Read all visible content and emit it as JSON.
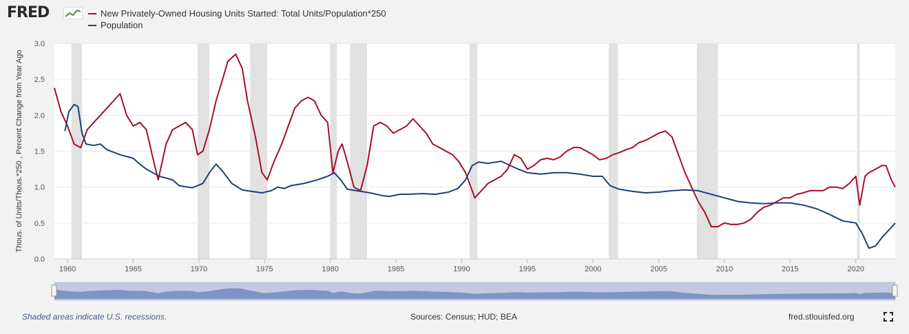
{
  "logo": {
    "text": "FRED",
    "icon": "fred-chart-icon"
  },
  "legend": [
    {
      "label": "New Privately-Owned Housing Units Started: Total Units/Population*250",
      "color": "#a50e27"
    },
    {
      "label": "Population",
      "color": "#1d3f74"
    }
  ],
  "footer": {
    "note": "Shaded areas indicate U.S. recessions.",
    "sources": "Sources: Census; HUD; BEA",
    "site": "fred.stlouisfed.org",
    "expand_icon": "fullscreen-icon"
  },
  "chart_data": {
    "type": "line",
    "ylabel": "Thous. of Units/Thous.*250 , Percent Change from Year Ago",
    "xlabel": "",
    "xlim": [
      1959.0,
      2023.0
    ],
    "ylim": [
      0.0,
      3.0
    ],
    "y_ticks": [
      "0.0",
      "0.5",
      "1.0",
      "1.5",
      "2.0",
      "2.5",
      "3.0"
    ],
    "x_ticks": [
      "1960",
      "1965",
      "1970",
      "1975",
      "1980",
      "1985",
      "1990",
      "1995",
      "2000",
      "2005",
      "2010",
      "2015",
      "2020"
    ],
    "grid": true,
    "legend_position": "top-left",
    "recessions": [
      [
        1960.3,
        1961.1
      ],
      [
        1969.9,
        1970.8
      ],
      [
        1973.9,
        1975.2
      ],
      [
        1980.0,
        1980.5
      ],
      [
        1981.5,
        1982.8
      ],
      [
        1990.6,
        1991.2
      ],
      [
        2001.2,
        2001.9
      ],
      [
        2007.9,
        2009.5
      ],
      [
        2020.1,
        2020.3
      ]
    ],
    "series": [
      {
        "name": "New Privately-Owned Housing Units Started: Total Units/Population*250",
        "color": "#a50e27",
        "points": [
          [
            1959.0,
            2.38
          ],
          [
            1959.5,
            2.05
          ],
          [
            1960.0,
            1.85
          ],
          [
            1960.5,
            1.6
          ],
          [
            1961.0,
            1.55
          ],
          [
            1961.5,
            1.8
          ],
          [
            1962.0,
            1.9
          ],
          [
            1962.5,
            2.0
          ],
          [
            1963.0,
            2.1
          ],
          [
            1963.5,
            2.2
          ],
          [
            1964.0,
            2.3
          ],
          [
            1964.5,
            2.0
          ],
          [
            1965.0,
            1.85
          ],
          [
            1965.5,
            1.9
          ],
          [
            1966.0,
            1.8
          ],
          [
            1966.5,
            1.4
          ],
          [
            1966.9,
            1.1
          ],
          [
            1967.5,
            1.6
          ],
          [
            1968.0,
            1.8
          ],
          [
            1968.5,
            1.85
          ],
          [
            1969.0,
            1.9
          ],
          [
            1969.5,
            1.8
          ],
          [
            1969.9,
            1.45
          ],
          [
            1970.3,
            1.5
          ],
          [
            1970.8,
            1.8
          ],
          [
            1971.3,
            2.2
          ],
          [
            1971.8,
            2.5
          ],
          [
            1972.2,
            2.75
          ],
          [
            1972.8,
            2.85
          ],
          [
            1973.3,
            2.65
          ],
          [
            1973.7,
            2.2
          ],
          [
            1974.3,
            1.7
          ],
          [
            1974.8,
            1.2
          ],
          [
            1975.2,
            1.1
          ],
          [
            1975.7,
            1.35
          ],
          [
            1976.3,
            1.6
          ],
          [
            1976.8,
            1.85
          ],
          [
            1977.3,
            2.1
          ],
          [
            1977.8,
            2.2
          ],
          [
            1978.3,
            2.25
          ],
          [
            1978.8,
            2.2
          ],
          [
            1979.3,
            2.0
          ],
          [
            1979.8,
            1.9
          ],
          [
            1980.2,
            1.2
          ],
          [
            1980.6,
            1.5
          ],
          [
            1980.9,
            1.6
          ],
          [
            1981.3,
            1.35
          ],
          [
            1981.8,
            1.0
          ],
          [
            1982.3,
            0.95
          ],
          [
            1982.8,
            1.3
          ],
          [
            1983.3,
            1.85
          ],
          [
            1983.8,
            1.9
          ],
          [
            1984.3,
            1.85
          ],
          [
            1984.8,
            1.75
          ],
          [
            1985.3,
            1.8
          ],
          [
            1985.8,
            1.85
          ],
          [
            1986.3,
            1.95
          ],
          [
            1986.8,
            1.85
          ],
          [
            1987.3,
            1.75
          ],
          [
            1987.8,
            1.6
          ],
          [
            1988.3,
            1.55
          ],
          [
            1988.8,
            1.5
          ],
          [
            1989.3,
            1.45
          ],
          [
            1989.8,
            1.35
          ],
          [
            1990.3,
            1.2
          ],
          [
            1990.7,
            1.0
          ],
          [
            1991.0,
            0.85
          ],
          [
            1991.5,
            0.95
          ],
          [
            1992.0,
            1.05
          ],
          [
            1992.5,
            1.1
          ],
          [
            1993.0,
            1.15
          ],
          [
            1993.5,
            1.25
          ],
          [
            1994.0,
            1.45
          ],
          [
            1994.5,
            1.4
          ],
          [
            1995.0,
            1.25
          ],
          [
            1995.5,
            1.3
          ],
          [
            1996.0,
            1.38
          ],
          [
            1996.5,
            1.4
          ],
          [
            1997.0,
            1.38
          ],
          [
            1997.5,
            1.42
          ],
          [
            1998.0,
            1.5
          ],
          [
            1998.5,
            1.55
          ],
          [
            1999.0,
            1.55
          ],
          [
            1999.5,
            1.5
          ],
          [
            2000.0,
            1.45
          ],
          [
            2000.5,
            1.38
          ],
          [
            2001.0,
            1.4
          ],
          [
            2001.5,
            1.45
          ],
          [
            2002.0,
            1.48
          ],
          [
            2002.5,
            1.52
          ],
          [
            2003.0,
            1.55
          ],
          [
            2003.5,
            1.62
          ],
          [
            2004.0,
            1.65
          ],
          [
            2004.5,
            1.7
          ],
          [
            2005.0,
            1.75
          ],
          [
            2005.5,
            1.78
          ],
          [
            2006.0,
            1.7
          ],
          [
            2006.5,
            1.45
          ],
          [
            2007.0,
            1.2
          ],
          [
            2007.5,
            1.0
          ],
          [
            2008.0,
            0.8
          ],
          [
            2008.5,
            0.65
          ],
          [
            2009.0,
            0.45
          ],
          [
            2009.5,
            0.45
          ],
          [
            2010.0,
            0.5
          ],
          [
            2010.5,
            0.48
          ],
          [
            2011.0,
            0.48
          ],
          [
            2011.5,
            0.5
          ],
          [
            2012.0,
            0.55
          ],
          [
            2012.5,
            0.65
          ],
          [
            2013.0,
            0.72
          ],
          [
            2013.5,
            0.75
          ],
          [
            2014.0,
            0.8
          ],
          [
            2014.5,
            0.85
          ],
          [
            2015.0,
            0.85
          ],
          [
            2015.5,
            0.9
          ],
          [
            2016.0,
            0.92
          ],
          [
            2016.5,
            0.95
          ],
          [
            2017.0,
            0.95
          ],
          [
            2017.5,
            0.95
          ],
          [
            2018.0,
            1.0
          ],
          [
            2018.5,
            1.0
          ],
          [
            2019.0,
            0.98
          ],
          [
            2019.5,
            1.05
          ],
          [
            2020.0,
            1.15
          ],
          [
            2020.3,
            0.75
          ],
          [
            2020.7,
            1.15
          ],
          [
            2021.0,
            1.2
          ],
          [
            2021.5,
            1.25
          ],
          [
            2022.0,
            1.3
          ],
          [
            2022.3,
            1.3
          ],
          [
            2022.7,
            1.1
          ],
          [
            2023.0,
            1.0
          ]
        ]
      },
      {
        "name": "Population",
        "color": "#1d3f74",
        "points": [
          [
            1959.8,
            1.78
          ],
          [
            1960.1,
            2.05
          ],
          [
            1960.5,
            2.15
          ],
          [
            1960.8,
            2.12
          ],
          [
            1961.1,
            1.75
          ],
          [
            1961.4,
            1.6
          ],
          [
            1962.0,
            1.58
          ],
          [
            1962.5,
            1.6
          ],
          [
            1963.0,
            1.52
          ],
          [
            1964.0,
            1.45
          ],
          [
            1965.0,
            1.4
          ],
          [
            1965.5,
            1.32
          ],
          [
            1966.0,
            1.25
          ],
          [
            1967.0,
            1.15
          ],
          [
            1968.0,
            1.1
          ],
          [
            1968.5,
            1.02
          ],
          [
            1969.5,
            0.99
          ],
          [
            1970.3,
            1.05
          ],
          [
            1970.8,
            1.2
          ],
          [
            1971.3,
            1.32
          ],
          [
            1971.8,
            1.22
          ],
          [
            1972.5,
            1.05
          ],
          [
            1973.3,
            0.96
          ],
          [
            1974.0,
            0.94
          ],
          [
            1974.8,
            0.92
          ],
          [
            1975.5,
            0.95
          ],
          [
            1976.0,
            1.0
          ],
          [
            1976.5,
            0.98
          ],
          [
            1977.0,
            1.02
          ],
          [
            1978.0,
            1.05
          ],
          [
            1979.0,
            1.1
          ],
          [
            1979.8,
            1.15
          ],
          [
            1980.3,
            1.2
          ],
          [
            1980.8,
            1.1
          ],
          [
            1981.3,
            0.97
          ],
          [
            1982.0,
            0.95
          ],
          [
            1983.0,
            0.92
          ],
          [
            1984.0,
            0.88
          ],
          [
            1984.5,
            0.87
          ],
          [
            1985.3,
            0.9
          ],
          [
            1986.0,
            0.9
          ],
          [
            1987.0,
            0.91
          ],
          [
            1988.0,
            0.9
          ],
          [
            1989.0,
            0.93
          ],
          [
            1989.7,
            0.98
          ],
          [
            1990.3,
            1.1
          ],
          [
            1990.8,
            1.3
          ],
          [
            1991.3,
            1.35
          ],
          [
            1992.0,
            1.33
          ],
          [
            1993.0,
            1.36
          ],
          [
            1993.7,
            1.3
          ],
          [
            1994.3,
            1.25
          ],
          [
            1995.0,
            1.2
          ],
          [
            1996.0,
            1.18
          ],
          [
            1997.0,
            1.2
          ],
          [
            1998.0,
            1.2
          ],
          [
            1999.0,
            1.18
          ],
          [
            2000.0,
            1.15
          ],
          [
            2000.7,
            1.15
          ],
          [
            2001.3,
            1.02
          ],
          [
            2002.0,
            0.97
          ],
          [
            2003.0,
            0.94
          ],
          [
            2004.0,
            0.92
          ],
          [
            2005.0,
            0.93
          ],
          [
            2006.0,
            0.95
          ],
          [
            2007.0,
            0.96
          ],
          [
            2008.0,
            0.95
          ],
          [
            2009.0,
            0.9
          ],
          [
            2010.0,
            0.85
          ],
          [
            2011.0,
            0.8
          ],
          [
            2012.0,
            0.78
          ],
          [
            2013.0,
            0.77
          ],
          [
            2014.0,
            0.78
          ],
          [
            2015.0,
            0.78
          ],
          [
            2016.0,
            0.75
          ],
          [
            2017.0,
            0.7
          ],
          [
            2018.0,
            0.62
          ],
          [
            2019.0,
            0.53
          ],
          [
            2020.0,
            0.5
          ],
          [
            2020.5,
            0.35
          ],
          [
            2021.0,
            0.15
          ],
          [
            2021.5,
            0.18
          ],
          [
            2022.0,
            0.3
          ],
          [
            2022.5,
            0.4
          ],
          [
            2023.0,
            0.5
          ]
        ]
      }
    ]
  }
}
